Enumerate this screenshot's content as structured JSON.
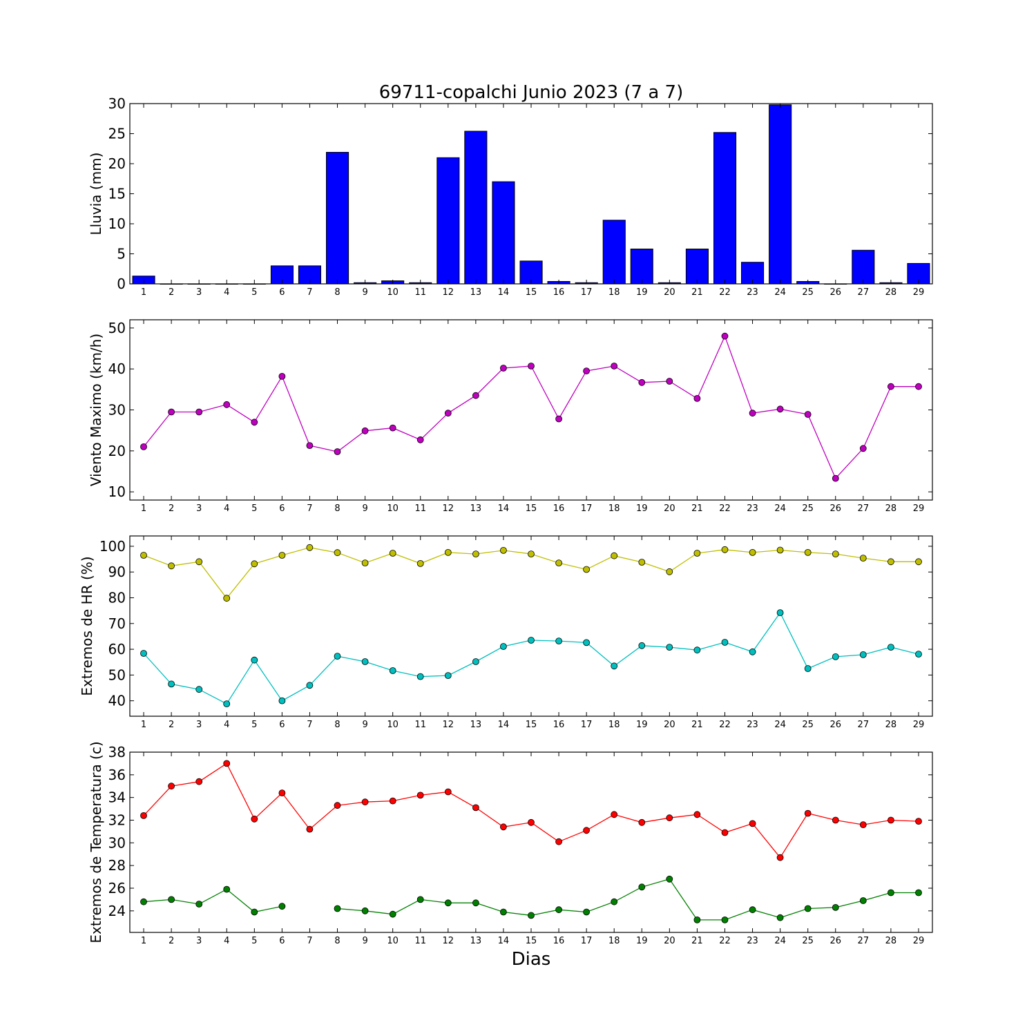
{
  "title": "69711-copalchi Junio 2023  (7 a 7)",
  "xlabel": "Dias",
  "chart_data": [
    {
      "type": "bar",
      "ylabel": "Lluvia (mm)",
      "ylim": [
        0,
        30
      ],
      "yticks": [
        0,
        5,
        10,
        15,
        20,
        25,
        30
      ],
      "categories": [
        1,
        2,
        3,
        4,
        5,
        6,
        7,
        8,
        9,
        10,
        11,
        12,
        13,
        14,
        15,
        16,
        17,
        18,
        19,
        20,
        21,
        22,
        23,
        24,
        25,
        26,
        27,
        28,
        29
      ],
      "colors": {
        "bar": "#0000ff"
      },
      "series": [
        {
          "values": [
            1.3,
            0,
            0,
            0,
            0,
            3.0,
            3.0,
            21.9,
            0.2,
            0.5,
            0.2,
            21.0,
            25.4,
            17.0,
            3.8,
            0.4,
            0.2,
            10.6,
            5.8,
            0.2,
            5.8,
            25.2,
            3.6,
            29.8,
            0.4,
            0,
            5.6,
            0.2,
            3.4
          ]
        }
      ]
    },
    {
      "type": "line",
      "ylabel": "Viento Maximo (km/h)",
      "ylim": [
        8,
        52
      ],
      "yticks": [
        10,
        20,
        30,
        40,
        50
      ],
      "categories": [
        1,
        2,
        3,
        4,
        5,
        6,
        7,
        8,
        9,
        10,
        11,
        12,
        13,
        14,
        15,
        16,
        17,
        18,
        19,
        20,
        21,
        22,
        23,
        24,
        25,
        26,
        27,
        28,
        29
      ],
      "series": [
        {
          "color": "#bf00bf",
          "values": [
            21.0,
            29.5,
            29.5,
            31.3,
            27.0,
            38.2,
            21.3,
            19.8,
            24.9,
            25.6,
            22.7,
            29.2,
            33.5,
            40.2,
            40.7,
            27.8,
            39.5,
            40.7,
            36.7,
            37.0,
            32.8,
            48.0,
            29.2,
            30.2,
            28.9,
            13.3,
            20.6,
            35.7,
            35.7
          ]
        }
      ]
    },
    {
      "type": "line",
      "ylabel": "Extremos de HR (%)",
      "ylim": [
        34,
        104
      ],
      "yticks": [
        40,
        50,
        60,
        70,
        80,
        90,
        100
      ],
      "categories": [
        1,
        2,
        3,
        4,
        5,
        6,
        7,
        8,
        9,
        10,
        11,
        12,
        13,
        14,
        15,
        16,
        17,
        18,
        19,
        20,
        21,
        22,
        23,
        24,
        25,
        26,
        27,
        28,
        29
      ],
      "series": [
        {
          "color": "#bfbf00",
          "values": [
            96.5,
            92.4,
            94.0,
            79.8,
            93.2,
            96.5,
            99.5,
            97.5,
            93.5,
            97.3,
            93.3,
            97.6,
            97.0,
            98.4,
            97.0,
            93.5,
            91.0,
            96.3,
            93.8,
            90.1,
            97.3,
            98.7,
            97.6,
            98.5,
            97.6,
            97.0,
            95.4,
            94.0,
            94.0
          ]
        },
        {
          "color": "#00bfbf",
          "values": [
            58.4,
            46.5,
            44.4,
            38.8,
            55.8,
            40.0,
            46.0,
            57.3,
            55.2,
            51.7,
            49.4,
            49.8,
            55.2,
            61.1,
            63.5,
            63.2,
            62.6,
            53.5,
            61.4,
            60.8,
            59.7,
            62.7,
            59.0,
            74.2,
            52.5,
            57.1,
            57.9,
            60.8,
            58.1
          ]
        }
      ]
    },
    {
      "type": "line",
      "ylabel": "Extremos de Temperatura (c)",
      "ylim": [
        22.1,
        38
      ],
      "yticks": [
        24,
        26,
        28,
        30,
        32,
        34,
        36,
        38
      ],
      "categories": [
        1,
        2,
        3,
        4,
        5,
        6,
        7,
        8,
        9,
        10,
        11,
        12,
        13,
        14,
        15,
        16,
        17,
        18,
        19,
        20,
        21,
        22,
        23,
        24,
        25,
        26,
        27,
        28,
        29
      ],
      "series": [
        {
          "color": "#ff0000",
          "values": [
            32.4,
            35.0,
            35.4,
            37.0,
            32.1,
            34.4,
            31.2,
            33.3,
            33.6,
            33.7,
            34.2,
            34.5,
            33.1,
            31.4,
            31.8,
            30.1,
            31.1,
            32.5,
            31.8,
            32.2,
            32.5,
            30.9,
            31.7,
            28.7,
            32.6,
            32.0,
            31.6,
            32.0,
            31.9
          ]
        },
        {
          "color": "#008000",
          "values": [
            24.8,
            25.0,
            24.6,
            25.9,
            23.9,
            24.4,
            null,
            24.2,
            24.0,
            23.7,
            25.0,
            24.7,
            24.7,
            23.9,
            23.6,
            24.1,
            23.9,
            24.8,
            26.1,
            26.8,
            23.2,
            23.2,
            24.1,
            23.4,
            24.2,
            24.3,
            24.9,
            25.6,
            25.6
          ]
        }
      ]
    }
  ]
}
